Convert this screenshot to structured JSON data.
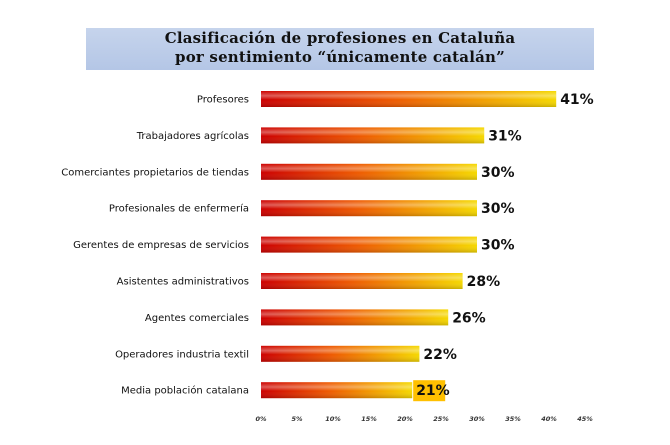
{
  "chart_data": {
    "type": "bar",
    "orientation": "horizontal",
    "title_line1": "Clasificación de profesiones en Cataluña",
    "title_line2": "por sentimiento “únicamente catalán”",
    "categories": [
      "Profesores",
      "Trabajadores agrícolas",
      "Comerciantes propietarios de tiendas",
      "Profesionales de enfermería",
      "Gerentes de empresas de servicios",
      "Asistentes administrativos",
      "Agentes comerciales",
      "Operadores industria textil",
      "Media población catalana"
    ],
    "values": [
      41,
      31,
      30,
      30,
      30,
      28,
      26,
      22,
      21
    ],
    "value_labels": [
      "41%",
      "31%",
      "30%",
      "30%",
      "30%",
      "28%",
      "26%",
      "22%",
      "21%"
    ],
    "xlim": [
      0,
      45
    ],
    "x_ticks": [
      0,
      5,
      10,
      15,
      20,
      25,
      30,
      35,
      40,
      45
    ],
    "x_tick_labels": [
      "0%",
      "5%",
      "10%",
      "15%",
      "20%",
      "25%",
      "30%",
      "35%",
      "40%",
      "45%"
    ],
    "highlighted_category": "Media población catalana",
    "colors": {
      "bar_start": "#cc0000",
      "bar_mid": "#ee5a00",
      "bar_end": "#f5d800",
      "title_band": "#b8c9e8",
      "highlight_box": "#ffc000"
    },
    "grid": false,
    "legend": "none"
  }
}
